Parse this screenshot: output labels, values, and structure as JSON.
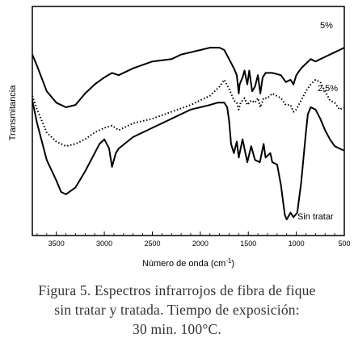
{
  "chart_data": {
    "type": "line",
    "xlabel": "Número de onda (cm",
    "xlabel_sup": "-1",
    "xlabel_end": ")",
    "ylabel": "Transmitancia",
    "xlim": [
      3750,
      500
    ],
    "x_ticks": [
      3500,
      3000,
      2500,
      2000,
      1500,
      1000,
      500
    ],
    "x_tick_labels": [
      "3500",
      "3000",
      "2500",
      "2000",
      "1500",
      "1000",
      "500"
    ],
    "y_ticks_shown": false,
    "series": [
      {
        "name": "5%",
        "style": "solid",
        "points": [
          [
            3750,
            0.79
          ],
          [
            3700,
            0.74
          ],
          [
            3600,
            0.63
          ],
          [
            3500,
            0.58
          ],
          [
            3400,
            0.56
          ],
          [
            3300,
            0.57
          ],
          [
            3200,
            0.62
          ],
          [
            3100,
            0.66
          ],
          [
            3000,
            0.69
          ],
          [
            2920,
            0.71
          ],
          [
            2850,
            0.7
          ],
          [
            2700,
            0.73
          ],
          [
            2500,
            0.76
          ],
          [
            2300,
            0.77
          ],
          [
            2200,
            0.79
          ],
          [
            2100,
            0.8
          ],
          [
            2000,
            0.81
          ],
          [
            1900,
            0.82
          ],
          [
            1800,
            0.82
          ],
          [
            1750,
            0.81
          ],
          [
            1700,
            0.77
          ],
          [
            1650,
            0.73
          ],
          [
            1620,
            0.7
          ],
          [
            1600,
            0.62
          ],
          [
            1590,
            0.66
          ],
          [
            1560,
            0.69
          ],
          [
            1540,
            0.72
          ],
          [
            1510,
            0.66
          ],
          [
            1490,
            0.72
          ],
          [
            1460,
            0.63
          ],
          [
            1430,
            0.65
          ],
          [
            1400,
            0.7
          ],
          [
            1375,
            0.62
          ],
          [
            1350,
            0.69
          ],
          [
            1320,
            0.71
          ],
          [
            1250,
            0.71
          ],
          [
            1160,
            0.7
          ],
          [
            1110,
            0.67
          ],
          [
            1060,
            0.68
          ],
          [
            1030,
            0.66
          ],
          [
            1000,
            0.7
          ],
          [
            950,
            0.73
          ],
          [
            900,
            0.75
          ],
          [
            850,
            0.77
          ],
          [
            800,
            0.76
          ],
          [
            700,
            0.78
          ],
          [
            600,
            0.8
          ],
          [
            550,
            0.81
          ],
          [
            500,
            0.82
          ]
        ]
      },
      {
        "name": "2,5%",
        "style": "dotted",
        "points": [
          [
            3750,
            0.61
          ],
          [
            3700,
            0.55
          ],
          [
            3600,
            0.45
          ],
          [
            3500,
            0.41
          ],
          [
            3400,
            0.39
          ],
          [
            3300,
            0.4
          ],
          [
            3200,
            0.42
          ],
          [
            3100,
            0.45
          ],
          [
            3000,
            0.47
          ],
          [
            2920,
            0.48
          ],
          [
            2850,
            0.46
          ],
          [
            2700,
            0.49
          ],
          [
            2500,
            0.51
          ],
          [
            2300,
            0.54
          ],
          [
            2100,
            0.57
          ],
          [
            2000,
            0.59
          ],
          [
            1900,
            0.61
          ],
          [
            1800,
            0.65
          ],
          [
            1750,
            0.68
          ],
          [
            1700,
            0.64
          ],
          [
            1650,
            0.59
          ],
          [
            1620,
            0.58
          ],
          [
            1600,
            0.55
          ],
          [
            1580,
            0.58
          ],
          [
            1540,
            0.6
          ],
          [
            1510,
            0.57
          ],
          [
            1470,
            0.59
          ],
          [
            1430,
            0.58
          ],
          [
            1400,
            0.6
          ],
          [
            1375,
            0.56
          ],
          [
            1340,
            0.6
          ],
          [
            1300,
            0.6
          ],
          [
            1250,
            0.62
          ],
          [
            1160,
            0.6
          ],
          [
            1110,
            0.57
          ],
          [
            1060,
            0.57
          ],
          [
            1030,
            0.54
          ],
          [
            1000,
            0.55
          ],
          [
            950,
            0.59
          ],
          [
            900,
            0.63
          ],
          [
            850,
            0.66
          ],
          [
            800,
            0.68
          ],
          [
            750,
            0.67
          ],
          [
            700,
            0.63
          ],
          [
            650,
            0.59
          ],
          [
            600,
            0.58
          ],
          [
            550,
            0.55
          ],
          [
            500,
            0.56
          ]
        ]
      },
      {
        "name": "Sin tratar",
        "style": "solid",
        "points": [
          [
            3750,
            0.59
          ],
          [
            3700,
            0.49
          ],
          [
            3600,
            0.33
          ],
          [
            3500,
            0.24
          ],
          [
            3450,
            0.19
          ],
          [
            3400,
            0.18
          ],
          [
            3300,
            0.21
          ],
          [
            3200,
            0.28
          ],
          [
            3100,
            0.36
          ],
          [
            3050,
            0.4
          ],
          [
            3000,
            0.42
          ],
          [
            2950,
            0.38
          ],
          [
            2920,
            0.3
          ],
          [
            2880,
            0.36
          ],
          [
            2850,
            0.38
          ],
          [
            2700,
            0.43
          ],
          [
            2500,
            0.47
          ],
          [
            2300,
            0.51
          ],
          [
            2200,
            0.53
          ],
          [
            2100,
            0.55
          ],
          [
            2000,
            0.56
          ],
          [
            1900,
            0.57
          ],
          [
            1820,
            0.58
          ],
          [
            1750,
            0.58
          ],
          [
            1720,
            0.56
          ],
          [
            1700,
            0.5
          ],
          [
            1680,
            0.4
          ],
          [
            1650,
            0.36
          ],
          [
            1620,
            0.41
          ],
          [
            1600,
            0.34
          ],
          [
            1560,
            0.42
          ],
          [
            1510,
            0.32
          ],
          [
            1470,
            0.39
          ],
          [
            1430,
            0.33
          ],
          [
            1380,
            0.32
          ],
          [
            1340,
            0.4
          ],
          [
            1320,
            0.34
          ],
          [
            1270,
            0.36
          ],
          [
            1250,
            0.32
          ],
          [
            1200,
            0.31
          ],
          [
            1160,
            0.22
          ],
          [
            1120,
            0.09
          ],
          [
            1100,
            0.07
          ],
          [
            1060,
            0.1
          ],
          [
            1030,
            0.08
          ],
          [
            990,
            0.1
          ],
          [
            950,
            0.23
          ],
          [
            900,
            0.45
          ],
          [
            880,
            0.53
          ],
          [
            850,
            0.56
          ],
          [
            800,
            0.55
          ],
          [
            750,
            0.51
          ],
          [
            700,
            0.46
          ],
          [
            650,
            0.42
          ],
          [
            600,
            0.39
          ],
          [
            550,
            0.38
          ],
          [
            500,
            0.37
          ]
        ]
      }
    ],
    "annotations": [
      {
        "text": "5%",
        "series": 0
      },
      {
        "text": "2,5%",
        "series": 1
      },
      {
        "text": "Sin tratar",
        "series": 2
      }
    ]
  },
  "caption": {
    "line1": "Figura 5. Espectros infrarrojos de fibra de fique",
    "line2": "sin tratar y tratada. Tiempo de exposición:",
    "line3": "30 min. 100°C."
  }
}
